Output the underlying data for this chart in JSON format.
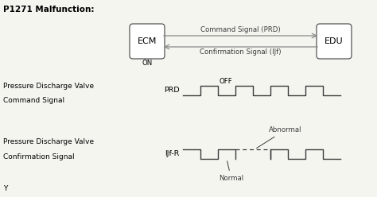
{
  "title": "P1271 Malfunction:",
  "background_color": "#f5f5f0",
  "ecm_label": "ECM",
  "edu_label": "EDU",
  "cmd_signal_label": "Command Signal (PRD)",
  "conf_signal_label": "Confirmation Signal (IJf)",
  "on_label": "ON",
  "off_label": "OFF",
  "abnormal_label": "Abnormal",
  "normal_label": "Normal",
  "prd_label": "PRD",
  "ijfr_label": "IJf-R",
  "prd_text1": "Pressure Discharge Valve",
  "prd_text2": "Command Signal",
  "ijfr_text1": "Pressure Discharge Valve",
  "ijfr_text2": "Confirmation Signal",
  "y_label": "Y",
  "line_color": "#3a3a3a",
  "arrow_color": "#888888",
  "box_edge_color": "#555555"
}
